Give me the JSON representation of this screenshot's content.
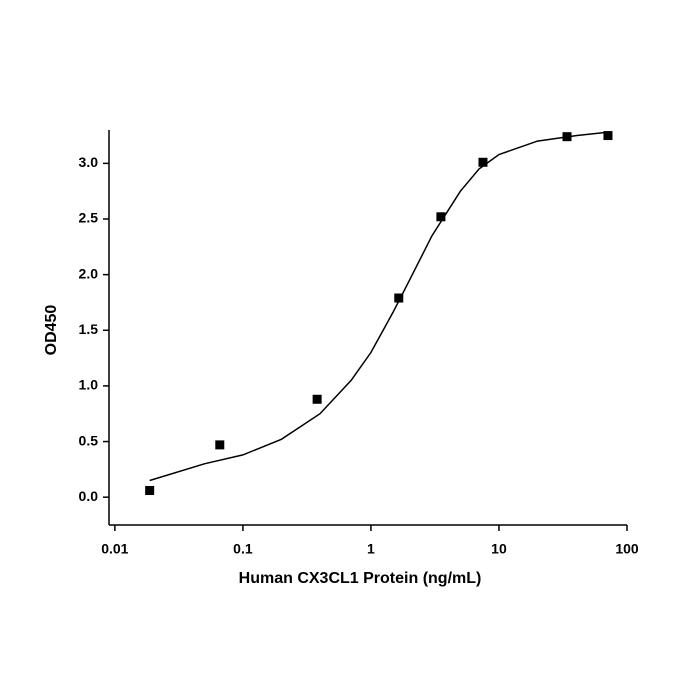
{
  "chart_data": {
    "type": "scatter",
    "xlabel": "Human CX3CL1 Protein (ng/mL)",
    "ylabel": "OD450",
    "log_x": true,
    "color": "#000000",
    "x": [
      0.0187,
      0.066,
      0.38,
      1.65,
      3.52,
      7.5,
      34,
      71
    ],
    "values": [
      0.06,
      0.47,
      0.88,
      1.79,
      2.52,
      3.01,
      3.24,
      3.25
    ],
    "curve": {
      "x": [
        0.0187,
        0.05,
        0.1,
        0.2,
        0.4,
        0.7,
        1,
        1.5,
        2,
        3,
        5,
        7,
        10,
        20,
        40,
        70
      ],
      "values": [
        0.15,
        0.3,
        0.38,
        0.52,
        0.75,
        1.05,
        1.3,
        1.67,
        1.95,
        2.35,
        2.75,
        2.95,
        3.08,
        3.2,
        3.25,
        3.28
      ]
    },
    "xlim": [
      0.009,
      100
    ],
    "ylim": [
      -0.25,
      3.3
    ],
    "xticks": [
      0.01,
      0.1,
      1,
      10,
      100
    ],
    "yticks": [
      {
        "value": 0,
        "label": "0.0"
      },
      {
        "value": 0.5,
        "label": "0.5"
      },
      {
        "value": 1,
        "label": "1.0"
      },
      {
        "value": 1.5,
        "label": "1.5"
      },
      {
        "value": 2,
        "label": "2.0"
      },
      {
        "value": 2.5,
        "label": "2.5"
      },
      {
        "value": 3,
        "label": "3.0"
      }
    ]
  }
}
